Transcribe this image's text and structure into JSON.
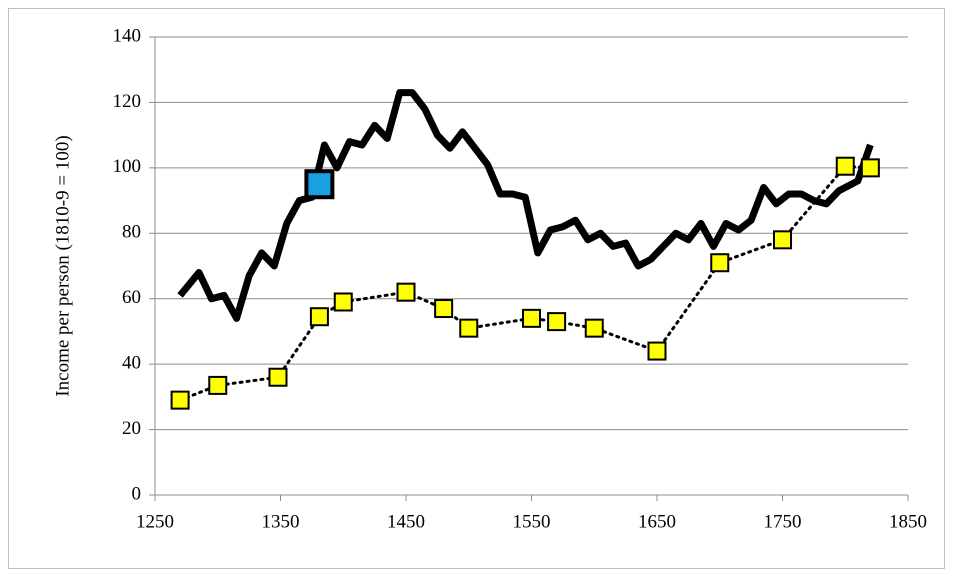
{
  "chart_data": {
    "type": "line",
    "y_label": "Income per person (1810-9 = 100)",
    "xlim": [
      1250,
      1850
    ],
    "xticks": [
      1250,
      1350,
      1450,
      1550,
      1650,
      1750,
      1850
    ],
    "ylim": [
      0,
      140
    ],
    "yticks": [
      0,
      20,
      40,
      60,
      80,
      100,
      120,
      140
    ],
    "grid": true,
    "series": [
      {
        "color": "#000000",
        "line_style": "solid",
        "marker": "none",
        "x": [
          1270,
          1285,
          1295,
          1305,
          1315,
          1325,
          1335,
          1345,
          1355,
          1365,
          1375,
          1385,
          1395,
          1405,
          1415,
          1425,
          1435,
          1445,
          1455,
          1465,
          1475,
          1485,
          1495,
          1505,
          1515,
          1525,
          1535,
          1545,
          1555,
          1565,
          1575,
          1585,
          1595,
          1605,
          1615,
          1625,
          1635,
          1645,
          1655,
          1665,
          1675,
          1685,
          1695,
          1705,
          1715,
          1725,
          1735,
          1745,
          1755,
          1765,
          1775,
          1785,
          1795,
          1810,
          1820
        ],
        "values": [
          61,
          68,
          60,
          61,
          54,
          67,
          74,
          70,
          83,
          90,
          91,
          107,
          100,
          108,
          107,
          113,
          109,
          123,
          123,
          118,
          110,
          106,
          111,
          106,
          101,
          92,
          92,
          91,
          74,
          81,
          82,
          84,
          78,
          80,
          76,
          77,
          70,
          72,
          76,
          80,
          78,
          83,
          76,
          83,
          81,
          84,
          94,
          89,
          92,
          92,
          90,
          89,
          93,
          96,
          107
        ]
      },
      {
        "color": "#ffff00",
        "line_style": "dotted",
        "marker": "square",
        "x": [
          1270,
          1300,
          1348,
          1381,
          1400,
          1450,
          1480,
          1500,
          1550,
          1570,
          1600,
          1650,
          1700,
          1750,
          1800,
          1820
        ],
        "values": [
          29,
          33.5,
          36,
          54.5,
          59,
          62,
          57,
          51,
          54,
          53,
          51,
          44,
          71,
          78,
          100.5,
          100
        ]
      },
      {
        "color": "#1a9fe0",
        "line_style": "none",
        "marker": "big-square",
        "x": [
          1381
        ],
        "values": [
          95
        ]
      }
    ]
  }
}
